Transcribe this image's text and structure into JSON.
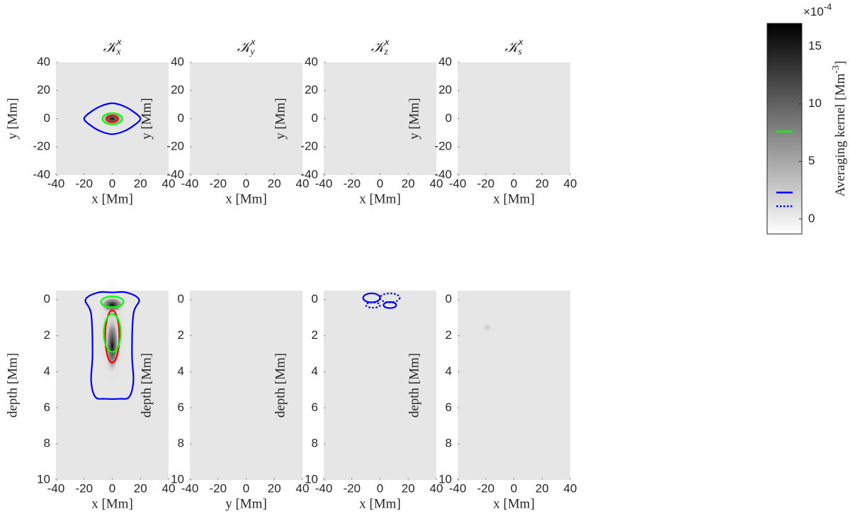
{
  "chart_data": [
    {
      "type": "heatmap",
      "title": {
        "base": "𝒦",
        "sup": "x",
        "sub": "x"
      },
      "xlabel": "x [Mm]",
      "ylabel": "y [Mm]",
      "xlim": [
        -40,
        40
      ],
      "ylim": [
        -40,
        40
      ],
      "xticks": [
        -40,
        -20,
        0,
        20,
        40
      ],
      "yticks": [
        -40,
        -20,
        0,
        20,
        40
      ],
      "background": "#e6e6e6",
      "contours": [
        {
          "color": "#0000ff",
          "style": "solid",
          "x": [
            -20,
            -15,
            -8,
            0,
            8,
            15,
            20,
            15,
            8,
            0,
            -8,
            -15
          ],
          "y": [
            0,
            5,
            9,
            11,
            9,
            5,
            0,
            -5,
            -9,
            -11,
            -9,
            -5
          ]
        },
        {
          "color": "#00ff00",
          "style": "solid",
          "cx": 0,
          "cy": 0,
          "rx": 7,
          "ry": 4
        },
        {
          "color": "#ff0000",
          "style": "solid",
          "cx": 0,
          "cy": 0,
          "rx": 4,
          "ry": 2.4
        }
      ]
    },
    {
      "type": "heatmap",
      "title": {
        "base": "𝒦",
        "sup": "x",
        "sub": "y"
      },
      "xlabel": "x [Mm]",
      "ylabel": "y [Mm]",
      "xlim": [
        -40,
        40
      ],
      "ylim": [
        -40,
        40
      ],
      "xticks": [
        -40,
        -20,
        0,
        20,
        40
      ],
      "yticks": [
        -40,
        -20,
        0,
        20,
        40
      ],
      "background": "#e6e6e6",
      "contours": []
    },
    {
      "type": "heatmap",
      "title": {
        "base": "𝒦",
        "sup": "x",
        "sub": "z"
      },
      "xlabel": "x [Mm]",
      "ylabel": "y [Mm]",
      "xlim": [
        -40,
        40
      ],
      "ylim": [
        -40,
        40
      ],
      "xticks": [
        -40,
        -20,
        0,
        20,
        40
      ],
      "yticks": [
        -40,
        -20,
        0,
        20,
        40
      ],
      "background": "#e6e6e6",
      "contours": []
    },
    {
      "type": "heatmap",
      "title": {
        "base": "𝒦",
        "sup": "x",
        "sub": "s"
      },
      "xlabel": "x [Mm]",
      "ylabel": "y [Mm]",
      "xlim": [
        -40,
        40
      ],
      "ylim": [
        -40,
        40
      ],
      "xticks": [
        -40,
        -20,
        0,
        20,
        40
      ],
      "yticks": [
        -40,
        -20,
        0,
        20,
        40
      ],
      "background": "#e6e6e6",
      "contours": []
    },
    {
      "type": "heatmap",
      "xlabel": "x [Mm]",
      "ylabel": "depth [Mm]",
      "y_reverse": true,
      "xlim": [
        -40,
        40
      ],
      "ylim": [
        -0.5,
        10
      ],
      "xticks": [
        -40,
        -20,
        0,
        20,
        40
      ],
      "yticks": [
        0,
        2,
        4,
        6,
        8,
        10
      ],
      "background": "#e6e6e6",
      "contours": [
        {
          "color": "#0000ff",
          "style": "solid",
          "x": [
            -19,
            -10,
            0,
            10,
            19,
            15,
            14,
            15,
            12,
            5,
            -5,
            -12,
            -15,
            -14,
            -15
          ],
          "y": [
            0,
            -0.4,
            -0.4,
            -0.4,
            0,
            0.8,
            3,
            4.5,
            5.4,
            5.5,
            5.5,
            5.4,
            4.5,
            3,
            0.8
          ]
        },
        {
          "color": "#00ff00",
          "style": "solid",
          "cx": 0,
          "cy": 0.12,
          "rx": 8,
          "ry": 0.3
        },
        {
          "color": "#ff0000",
          "style": "solid",
          "cx": 0,
          "cy": 2.05,
          "rx": 5,
          "ry": 1.45
        },
        {
          "color": "#00ff00",
          "style": "solid",
          "cx": 0,
          "cy": 1.85,
          "rx": 6,
          "ry": 1.05
        }
      ]
    },
    {
      "type": "heatmap",
      "xlabel": "y [Mm]",
      "ylabel": "depth [Mm]",
      "y_reverse": true,
      "xlim": [
        -40,
        40
      ],
      "ylim": [
        -0.5,
        10
      ],
      "xticks": [
        -40,
        -20,
        0,
        20,
        40
      ],
      "yticks": [
        0,
        2,
        4,
        6,
        8,
        10
      ],
      "background": "#e6e6e6",
      "contours": []
    },
    {
      "type": "heatmap",
      "xlabel": "x [Mm]",
      "ylabel": "depth [Mm]",
      "y_reverse": true,
      "xlim": [
        -40,
        40
      ],
      "ylim": [
        -0.5,
        10
      ],
      "xticks": [
        -40,
        -20,
        0,
        20,
        40
      ],
      "yticks": [
        0,
        2,
        4,
        6,
        8,
        10
      ],
      "background": "#e6e6e6",
      "contours": [
        {
          "color": "#0000ff",
          "style": "solid",
          "cx": -6,
          "cy": -0.1,
          "rx": 6,
          "ry": 0.25
        },
        {
          "color": "#0000ff",
          "style": "dotted",
          "cx": 7,
          "cy": -0.1,
          "rx": 7,
          "ry": 0.25
        },
        {
          "color": "#0000ff",
          "style": "dotted",
          "cx": -5,
          "cy": 0.3,
          "rx": 5,
          "ry": 0.15
        },
        {
          "color": "#0000ff",
          "style": "solid",
          "cx": 7,
          "cy": 0.3,
          "rx": 4.5,
          "ry": 0.17
        }
      ]
    },
    {
      "type": "heatmap",
      "xlabel": "x [Mm]",
      "ylabel": "depth [Mm]",
      "y_reverse": true,
      "xlim": [
        -40,
        40
      ],
      "ylim": [
        -0.5,
        10
      ],
      "xticks": [
        -40,
        -20,
        0,
        20,
        40
      ],
      "yticks": [
        0,
        2,
        4,
        6,
        8,
        10
      ],
      "background": "#e6e6e6",
      "contours": []
    },
    {
      "type": "colorbar",
      "exponent": {
        "base": "×10",
        "sup": "-4"
      },
      "label": {
        "text": "Averaging kernel [Mm",
        "sup": "-3",
        "end": "]"
      },
      "ylim": [
        -1.3,
        17
      ],
      "yticks": [
        0,
        5,
        10,
        15
      ],
      "colors": [
        "#ffffff",
        "#000000"
      ],
      "levels": [
        {
          "color": "#00ff00",
          "style": "solid",
          "value": 7.6
        },
        {
          "color": "#0000ff",
          "style": "solid",
          "value": 2.3
        },
        {
          "color": "#0000ff",
          "style": "dotted",
          "value": 1.1
        }
      ]
    }
  ]
}
